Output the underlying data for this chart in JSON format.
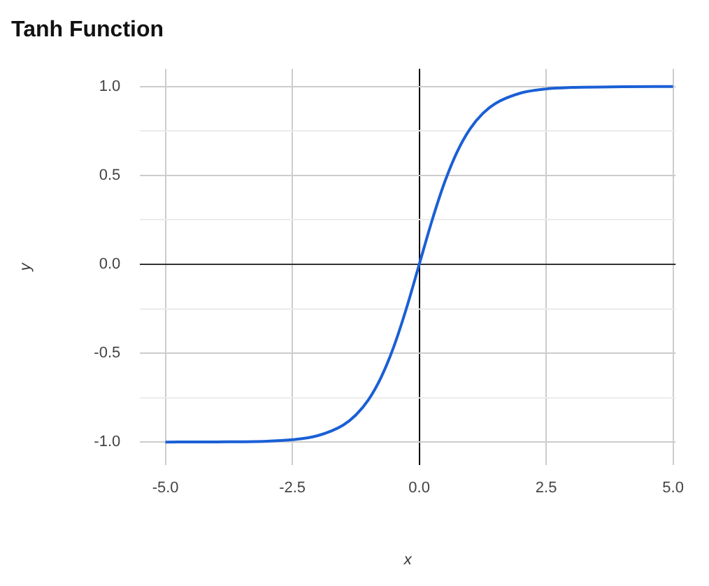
{
  "chart_data": {
    "type": "line",
    "title": "Tanh Function",
    "xlabel": "x",
    "ylabel": "y",
    "series": [
      {
        "color": "#1a5fd6",
        "x": [
          -5,
          -4,
          -3,
          -2.5,
          -2,
          -1.5,
          -1.25,
          -1,
          -0.75,
          -0.5,
          -0.25,
          0,
          0.25,
          0.5,
          0.75,
          1,
          1.25,
          1.5,
          2,
          2.5,
          3,
          4,
          5
        ],
        "values": [
          -1.0,
          -0.999,
          -0.995,
          -0.987,
          -0.964,
          -0.905,
          -0.848,
          -0.762,
          -0.635,
          -0.462,
          -0.245,
          0,
          0.245,
          0.462,
          0.635,
          0.762,
          0.848,
          0.905,
          0.964,
          0.987,
          0.995,
          0.999,
          1.0
        ]
      }
    ],
    "xlim": [
      -5.5,
      5.05
    ],
    "ylim": [
      -1.13,
      1.1
    ],
    "xticks": [
      {
        "value": -5,
        "label": "-5.0"
      },
      {
        "value": -2.5,
        "label": "-2.5"
      },
      {
        "value": 0,
        "label": "0.0"
      },
      {
        "value": 2.5,
        "label": "2.5"
      },
      {
        "value": 5,
        "label": "5.0"
      }
    ],
    "yticks": [
      {
        "value": -1,
        "label": "-1.0"
      },
      {
        "value": -0.75,
        "label": null
      },
      {
        "value": -0.5,
        "label": "-0.5"
      },
      {
        "value": -0.25,
        "label": null
      },
      {
        "value": 0,
        "label": "0.0"
      },
      {
        "value": 0.25,
        "label": null
      },
      {
        "value": 0.5,
        "label": "0.5"
      },
      {
        "value": 0.75,
        "label": null
      },
      {
        "value": 1,
        "label": "1.0"
      }
    ],
    "grid": true,
    "legend": false,
    "marker": "none",
    "line_style": "solid"
  }
}
